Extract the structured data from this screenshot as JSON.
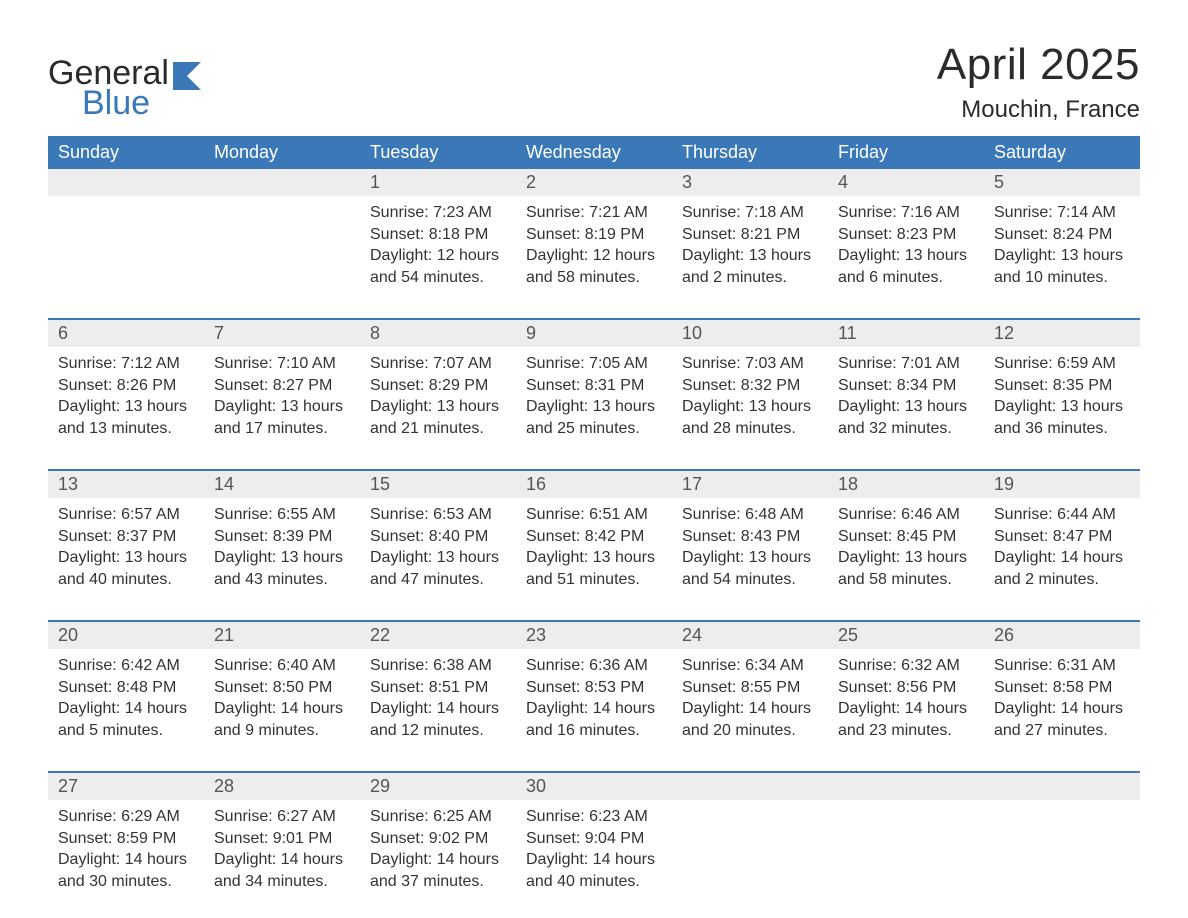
{
  "logo": {
    "word1": "General",
    "word2": "Blue"
  },
  "colors": {
    "brand_blue": "#3b78b8",
    "header_bg": "#3b78b8",
    "header_text": "#ffffff",
    "date_strip_bg": "#ededed",
    "body_text": "#333333",
    "page_bg": "#ffffff",
    "week_divider": "#3b78b8"
  },
  "typography": {
    "title_fontsize": 44,
    "subtitle_fontsize": 24,
    "dayhead_fontsize": 18,
    "date_fontsize": 18,
    "cell_fontsize": 16,
    "font_family": "Segoe UI"
  },
  "title": "April 2025",
  "location": "Mouchin, France",
  "day_labels": [
    "Sunday",
    "Monday",
    "Tuesday",
    "Wednesday",
    "Thursday",
    "Friday",
    "Saturday"
  ],
  "labels": {
    "sunrise": "Sunrise:",
    "sunset": "Sunset:",
    "daylight": "Daylight:"
  },
  "weeks": [
    [
      {
        "date": "",
        "sunrise": "",
        "sunset": "",
        "daylight_l1": "",
        "daylight_l2": ""
      },
      {
        "date": "",
        "sunrise": "",
        "sunset": "",
        "daylight_l1": "",
        "daylight_l2": ""
      },
      {
        "date": "1",
        "sunrise": "7:23 AM",
        "sunset": "8:18 PM",
        "daylight_l1": "12 hours",
        "daylight_l2": "and 54 minutes."
      },
      {
        "date": "2",
        "sunrise": "7:21 AM",
        "sunset": "8:19 PM",
        "daylight_l1": "12 hours",
        "daylight_l2": "and 58 minutes."
      },
      {
        "date": "3",
        "sunrise": "7:18 AM",
        "sunset": "8:21 PM",
        "daylight_l1": "13 hours",
        "daylight_l2": "and 2 minutes."
      },
      {
        "date": "4",
        "sunrise": "7:16 AM",
        "sunset": "8:23 PM",
        "daylight_l1": "13 hours",
        "daylight_l2": "and 6 minutes."
      },
      {
        "date": "5",
        "sunrise": "7:14 AM",
        "sunset": "8:24 PM",
        "daylight_l1": "13 hours",
        "daylight_l2": "and 10 minutes."
      }
    ],
    [
      {
        "date": "6",
        "sunrise": "7:12 AM",
        "sunset": "8:26 PM",
        "daylight_l1": "13 hours",
        "daylight_l2": "and 13 minutes."
      },
      {
        "date": "7",
        "sunrise": "7:10 AM",
        "sunset": "8:27 PM",
        "daylight_l1": "13 hours",
        "daylight_l2": "and 17 minutes."
      },
      {
        "date": "8",
        "sunrise": "7:07 AM",
        "sunset": "8:29 PM",
        "daylight_l1": "13 hours",
        "daylight_l2": "and 21 minutes."
      },
      {
        "date": "9",
        "sunrise": "7:05 AM",
        "sunset": "8:31 PM",
        "daylight_l1": "13 hours",
        "daylight_l2": "and 25 minutes."
      },
      {
        "date": "10",
        "sunrise": "7:03 AM",
        "sunset": "8:32 PM",
        "daylight_l1": "13 hours",
        "daylight_l2": "and 28 minutes."
      },
      {
        "date": "11",
        "sunrise": "7:01 AM",
        "sunset": "8:34 PM",
        "daylight_l1": "13 hours",
        "daylight_l2": "and 32 minutes."
      },
      {
        "date": "12",
        "sunrise": "6:59 AM",
        "sunset": "8:35 PM",
        "daylight_l1": "13 hours",
        "daylight_l2": "and 36 minutes."
      }
    ],
    [
      {
        "date": "13",
        "sunrise": "6:57 AM",
        "sunset": "8:37 PM",
        "daylight_l1": "13 hours",
        "daylight_l2": "and 40 minutes."
      },
      {
        "date": "14",
        "sunrise": "6:55 AM",
        "sunset": "8:39 PM",
        "daylight_l1": "13 hours",
        "daylight_l2": "and 43 minutes."
      },
      {
        "date": "15",
        "sunrise": "6:53 AM",
        "sunset": "8:40 PM",
        "daylight_l1": "13 hours",
        "daylight_l2": "and 47 minutes."
      },
      {
        "date": "16",
        "sunrise": "6:51 AM",
        "sunset": "8:42 PM",
        "daylight_l1": "13 hours",
        "daylight_l2": "and 51 minutes."
      },
      {
        "date": "17",
        "sunrise": "6:48 AM",
        "sunset": "8:43 PM",
        "daylight_l1": "13 hours",
        "daylight_l2": "and 54 minutes."
      },
      {
        "date": "18",
        "sunrise": "6:46 AM",
        "sunset": "8:45 PM",
        "daylight_l1": "13 hours",
        "daylight_l2": "and 58 minutes."
      },
      {
        "date": "19",
        "sunrise": "6:44 AM",
        "sunset": "8:47 PM",
        "daylight_l1": "14 hours",
        "daylight_l2": "and 2 minutes."
      }
    ],
    [
      {
        "date": "20",
        "sunrise": "6:42 AM",
        "sunset": "8:48 PM",
        "daylight_l1": "14 hours",
        "daylight_l2": "and 5 minutes."
      },
      {
        "date": "21",
        "sunrise": "6:40 AM",
        "sunset": "8:50 PM",
        "daylight_l1": "14 hours",
        "daylight_l2": "and 9 minutes."
      },
      {
        "date": "22",
        "sunrise": "6:38 AM",
        "sunset": "8:51 PM",
        "daylight_l1": "14 hours",
        "daylight_l2": "and 12 minutes."
      },
      {
        "date": "23",
        "sunrise": "6:36 AM",
        "sunset": "8:53 PM",
        "daylight_l1": "14 hours",
        "daylight_l2": "and 16 minutes."
      },
      {
        "date": "24",
        "sunrise": "6:34 AM",
        "sunset": "8:55 PM",
        "daylight_l1": "14 hours",
        "daylight_l2": "and 20 minutes."
      },
      {
        "date": "25",
        "sunrise": "6:32 AM",
        "sunset": "8:56 PM",
        "daylight_l1": "14 hours",
        "daylight_l2": "and 23 minutes."
      },
      {
        "date": "26",
        "sunrise": "6:31 AM",
        "sunset": "8:58 PM",
        "daylight_l1": "14 hours",
        "daylight_l2": "and 27 minutes."
      }
    ],
    [
      {
        "date": "27",
        "sunrise": "6:29 AM",
        "sunset": "8:59 PM",
        "daylight_l1": "14 hours",
        "daylight_l2": "and 30 minutes."
      },
      {
        "date": "28",
        "sunrise": "6:27 AM",
        "sunset": "9:01 PM",
        "daylight_l1": "14 hours",
        "daylight_l2": "and 34 minutes."
      },
      {
        "date": "29",
        "sunrise": "6:25 AM",
        "sunset": "9:02 PM",
        "daylight_l1": "14 hours",
        "daylight_l2": "and 37 minutes."
      },
      {
        "date": "30",
        "sunrise": "6:23 AM",
        "sunset": "9:04 PM",
        "daylight_l1": "14 hours",
        "daylight_l2": "and 40 minutes."
      },
      {
        "date": "",
        "sunrise": "",
        "sunset": "",
        "daylight_l1": "",
        "daylight_l2": ""
      },
      {
        "date": "",
        "sunrise": "",
        "sunset": "",
        "daylight_l1": "",
        "daylight_l2": ""
      },
      {
        "date": "",
        "sunrise": "",
        "sunset": "",
        "daylight_l1": "",
        "daylight_l2": ""
      }
    ]
  ]
}
